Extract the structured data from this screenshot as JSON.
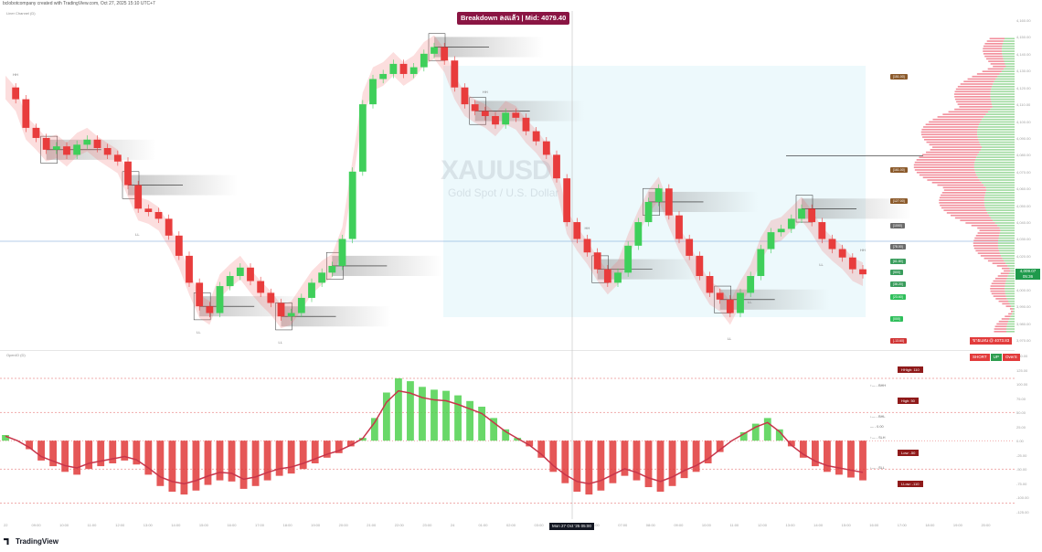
{
  "header": {
    "published_line": "bclobotcompany created with TradingView.com, Oct 27, 2025 15:10 UTC+7",
    "main_legend": "Liner Channel (D)",
    "osc_legend": "OpenIO (D)",
    "headline": "Breakdown ลงแล้ว | Mid: 4079.40"
  },
  "watermark": {
    "symbol": "XAUUSD",
    "name": "Gold Spot / U.S. Dollar"
  },
  "price_axis": {
    "ticks": [
      "4,160.00",
      "4,150.00",
      "4,140.00",
      "4,130.00",
      "4,120.00",
      "4,110.00",
      "4,100.00",
      "4,090.00",
      "4,080.00",
      "4,070.00",
      "4,060.00",
      "4,050.00",
      "4,040.00",
      "4,030.00",
      "4,020.00",
      "4,010.00",
      "4,000.00",
      "3,990.00",
      "3,980.00",
      "3,970.00"
    ],
    "current_price": "4,009.07",
    "current_sub": "05:36",
    "osc_ticks": [
      "150.00",
      "125.00",
      "100.00",
      "75.00",
      "50.00",
      "25.00",
      "0.00",
      "-25.00",
      "-50.00",
      "-75.00",
      "-100.00",
      "-125.00"
    ]
  },
  "time_axis": {
    "labels": [
      "22",
      "09:00",
      "10:00",
      "11:00",
      "12:00",
      "13:00",
      "14:00",
      "15:00",
      "16:00",
      "17:00",
      "18:00",
      "19:00",
      "20:00",
      "21:00",
      "22:00",
      "23:00",
      "24",
      "01:00",
      "02:00",
      "03:00",
      "04:00",
      "06:00",
      "07:00",
      "08:00",
      "09:00",
      "10:00",
      "11:00",
      "12:00",
      "13:00",
      "14:00",
      "15:00",
      "16:00",
      "17:00",
      "18:00",
      "19:00",
      "20:00"
    ],
    "cursor": "Mon 27 Oct '25  05:00"
  },
  "level_chips": [
    {
      "label": "[151.00]",
      "color": "#8b5a2b"
    },
    {
      "label": "[161.00]",
      "color": "#8b5a2b"
    },
    {
      "label": "[127.00]",
      "color": "#8b5a2b"
    },
    {
      "label": "[1000]",
      "color": "#6b6b6b"
    },
    {
      "label": "[78.00]",
      "color": "#6b6b6b"
    },
    {
      "label": "[61.80]",
      "color": "#3a9d5d"
    },
    {
      "label": "[500]",
      "color": "#3a9d5d"
    },
    {
      "label": "[38.20]",
      "color": "#3a9d5d"
    },
    {
      "label": "[23.60]",
      "color": "#2fbf5b"
    },
    {
      "label": "[000]",
      "color": "#2fbf5b"
    },
    {
      "label": "[-13.60]",
      "color": "#d03434"
    }
  ],
  "signal": {
    "label": "ขายแลน @ 4073.83",
    "badges": [
      {
        "text": "SHORT",
        "color": "#e23b3b"
      },
      {
        "text": "UP",
        "color": "#2e9d4f"
      },
      {
        "text": "OverS",
        "color": "#e23b3b"
      }
    ]
  },
  "osc_tags": {
    "hhigh": "HHigh: 110",
    "high": "High: 50",
    "low": "Low: -50",
    "llow": "LLow: -110"
  },
  "osc_notes": {
    "bhh": "↑— - BHH",
    "bhl": "↓— - BHL",
    "zero": "— - 0.00",
    "slh": "↑— - SLH",
    "sll": "↓— - SLL"
  },
  "swing_labels": [
    "HH",
    "LL",
    "LL",
    "LL",
    "HH",
    "HH",
    "LL",
    "LL",
    "LL",
    "HH"
  ],
  "footer": {
    "brand": "TradingView"
  },
  "chart_data": {
    "type": "candlestick",
    "symbol": "XAUUSD",
    "name": "Gold Spot / U.S. Dollar",
    "ylim": [
      3970,
      4160
    ],
    "close_path": [
      4120,
      4113,
      4096,
      4090,
      4083,
      4085,
      4080,
      4086,
      4089,
      4084,
      4080,
      4076,
      4062,
      4048,
      4046,
      4042,
      4032,
      4020,
      4004,
      3990,
      3986,
      4002,
      4008,
      4013,
      4005,
      3998,
      3992,
      3984,
      3986,
      3995,
      4004,
      4010,
      4014,
      4030,
      4070,
      4110,
      4125,
      4128,
      4134,
      4128,
      4132,
      4140,
      4144,
      4136,
      4120,
      4110,
      4106,
      4103,
      4098,
      4105,
      4102,
      4094,
      4088,
      4080,
      4066,
      4040,
      4030,
      4022,
      4012,
      4004,
      4010,
      4026,
      4040,
      4052,
      4060,
      4044,
      4030,
      4020,
      4008,
      3998,
      3994,
      3986,
      3998,
      4008,
      4024,
      4034,
      4036,
      4042,
      4048,
      4040,
      4030,
      4024,
      4019,
      4012,
      4009
    ],
    "supply_zone_mid": 4079.4,
    "osc_close_path": [
      10,
      0,
      -15,
      -35,
      -45,
      -55,
      -60,
      -50,
      -45,
      -40,
      -35,
      -42,
      -60,
      -80,
      -90,
      -95,
      -88,
      -78,
      -70,
      -72,
      -85,
      -80,
      -70,
      -62,
      -58,
      -50,
      -40,
      -30,
      -22,
      -10,
      5,
      40,
      85,
      110,
      105,
      95,
      90,
      88,
      80,
      70,
      60,
      40,
      20,
      5,
      -10,
      -30,
      -55,
      -75,
      -90,
      -95,
      -88,
      -75,
      -62,
      -70,
      -82,
      -90,
      -80,
      -66,
      -55,
      -40,
      -20,
      0,
      15,
      30,
      40,
      20,
      -10,
      -30,
      -45,
      -55,
      -60,
      -65,
      -70
    ]
  }
}
